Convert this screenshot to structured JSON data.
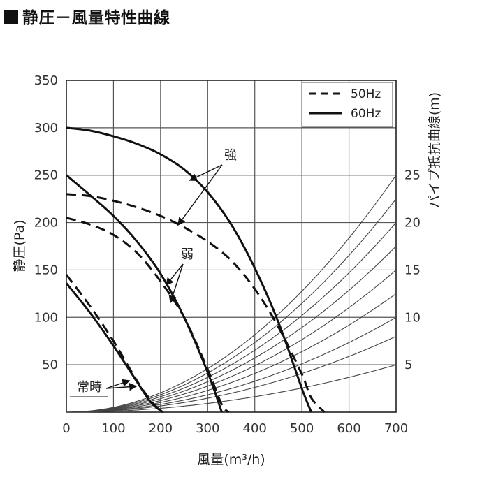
{
  "title": "静圧－風量特性曲線",
  "chart_data": {
    "type": "line",
    "xlabel": "風量(m³/h)",
    "ylabel": "静圧(Pa)",
    "y2label": "パイプ抵抗曲線(m)",
    "xlim": [
      0,
      700
    ],
    "ylim": [
      0,
      350
    ],
    "xticks": [
      0,
      100,
      200,
      300,
      400,
      500,
      600,
      700
    ],
    "yticks": [
      50,
      100,
      150,
      200,
      250,
      300,
      350
    ],
    "xtick_labels": [
      "0",
      "100",
      "200",
      "300",
      "400",
      "500",
      "600",
      "700"
    ],
    "ytick_labels": [
      "50",
      "100",
      "150",
      "200",
      "250",
      "300",
      "350"
    ],
    "grid": true,
    "legend": {
      "placement": "top-right",
      "entries": [
        {
          "label": "50Hz",
          "style": "dashed"
        },
        {
          "label": "60Hz",
          "style": "solid"
        }
      ]
    },
    "series": [
      {
        "group": "強",
        "freq": "60Hz",
        "style": "solid",
        "points": [
          [
            0,
            300
          ],
          [
            50,
            297
          ],
          [
            100,
            291
          ],
          [
            150,
            283
          ],
          [
            200,
            272
          ],
          [
            250,
            256
          ],
          [
            300,
            232
          ],
          [
            350,
            198
          ],
          [
            400,
            152
          ],
          [
            450,
            95
          ],
          [
            500,
            25
          ],
          [
            520,
            0
          ]
        ]
      },
      {
        "group": "強",
        "freq": "50Hz",
        "style": "dashed",
        "points": [
          [
            0,
            230
          ],
          [
            50,
            228
          ],
          [
            100,
            223
          ],
          [
            150,
            216
          ],
          [
            200,
            207
          ],
          [
            250,
            195
          ],
          [
            300,
            180
          ],
          [
            350,
            160
          ],
          [
            400,
            130
          ],
          [
            450,
            90
          ],
          [
            500,
            40
          ],
          [
            520,
            15
          ],
          [
            548,
            0
          ]
        ]
      },
      {
        "group": "弱",
        "freq": "60Hz",
        "style": "solid",
        "points": [
          [
            0,
            250
          ],
          [
            50,
            229
          ],
          [
            100,
            207
          ],
          [
            150,
            180
          ],
          [
            200,
            146
          ],
          [
            250,
            100
          ],
          [
            300,
            42
          ],
          [
            330,
            0
          ]
        ]
      },
      {
        "group": "弱",
        "freq": "50Hz",
        "style": "dashed",
        "points": [
          [
            0,
            205
          ],
          [
            50,
            198
          ],
          [
            100,
            187
          ],
          [
            150,
            168
          ],
          [
            200,
            138
          ],
          [
            250,
            100
          ],
          [
            300,
            45
          ],
          [
            330,
            8
          ],
          [
            345,
            0
          ]
        ]
      },
      {
        "group": "常時",
        "freq": "60Hz",
        "style": "solid",
        "points": [
          [
            0,
            136
          ],
          [
            50,
            105
          ],
          [
            100,
            70
          ],
          [
            150,
            32
          ],
          [
            180,
            10
          ],
          [
            205,
            0
          ]
        ]
      },
      {
        "group": "常時",
        "freq": "50Hz",
        "style": "dashed",
        "points": [
          [
            0,
            145
          ],
          [
            50,
            112
          ],
          [
            100,
            75
          ],
          [
            150,
            33
          ],
          [
            180,
            12
          ],
          [
            202,
            0
          ]
        ]
      }
    ],
    "pipe_resistance_curves": [
      {
        "label": "5",
        "end_value": 50
      },
      {
        "label": "",
        "end_value": 80
      },
      {
        "label": "10",
        "end_value": 100
      },
      {
        "label": "",
        "end_value": 125
      },
      {
        "label": "15",
        "end_value": 150
      },
      {
        "label": "",
        "end_value": 175
      },
      {
        "label": "20",
        "end_value": 200
      },
      {
        "label": "",
        "end_value": 225
      },
      {
        "label": "25",
        "end_value": 250
      }
    ],
    "annotations": [
      {
        "text": "強",
        "value_x": 355,
        "value_y": 270
      },
      {
        "text": "弱",
        "value_x": 268,
        "value_y": 170
      },
      {
        "text": "常時",
        "value_x": 113,
        "value_y": 27
      }
    ]
  }
}
